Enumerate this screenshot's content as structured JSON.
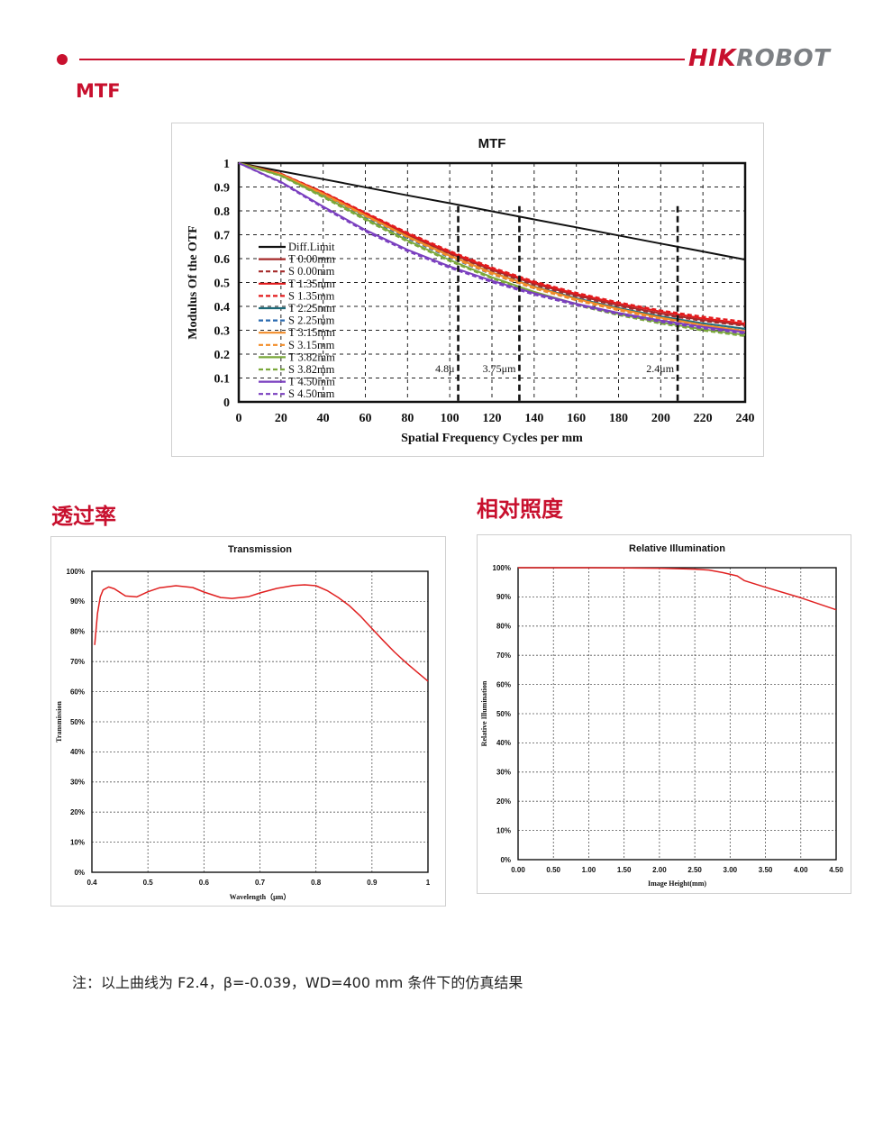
{
  "header": {
    "logo_part1": "HIK",
    "logo_part2": "ROBOT",
    "accent_color": "#c8102e"
  },
  "sections": {
    "mtf_title": "MTF",
    "transmission_title": "透过率",
    "illumination_title": "相对照度"
  },
  "note": "注：以上曲线为 F2.4，β=-0.039，WD=400 mm 条件下的仿真结果",
  "chart_data": [
    {
      "id": "mtf",
      "type": "line",
      "title": "MTF",
      "xlabel": "Spatial Frequency Cycles per mm",
      "ylabel": "Modulus Of the OTF",
      "xlim": [
        0,
        240
      ],
      "ylim": [
        0,
        1
      ],
      "xticks": [
        0,
        20,
        40,
        60,
        80,
        100,
        120,
        140,
        160,
        180,
        200,
        220,
        240
      ],
      "yticks": [
        0,
        0.1,
        0.2,
        0.3,
        0.4,
        0.5,
        0.6,
        0.7,
        0.8,
        0.9,
        1
      ],
      "x": [
        0,
        20,
        40,
        60,
        80,
        100,
        120,
        140,
        160,
        180,
        200,
        220,
        240
      ],
      "grid": true,
      "legend": "left",
      "series": [
        {
          "name": "Diff.Limit",
          "color": "#111111",
          "dash": false,
          "values": [
            1,
            0.966,
            0.933,
            0.899,
            0.865,
            0.832,
            0.798,
            0.764,
            0.731,
            0.697,
            0.663,
            0.63,
            0.596
          ]
        },
        {
          "name": "T 0.00mm",
          "color": "#a52a2a",
          "dash": false,
          "values": [
            1,
            0.953,
            0.873,
            0.785,
            0.7,
            0.622,
            0.553,
            0.495,
            0.446,
            0.405,
            0.37,
            0.343,
            0.322
          ]
        },
        {
          "name": "S 0.00mm",
          "color": "#a52a2a",
          "dash": true,
          "values": [
            1,
            0.951,
            0.869,
            0.78,
            0.695,
            0.617,
            0.548,
            0.49,
            0.442,
            0.401,
            0.366,
            0.339,
            0.318
          ]
        },
        {
          "name": "T 1.35mm",
          "color": "#e31a1c",
          "dash": false,
          "values": [
            1,
            0.955,
            0.877,
            0.79,
            0.705,
            0.627,
            0.558,
            0.5,
            0.452,
            0.412,
            0.378,
            0.35,
            0.328
          ]
        },
        {
          "name": "S 1.35mm",
          "color": "#e31a1c",
          "dash": true,
          "values": [
            1,
            0.956,
            0.879,
            0.793,
            0.709,
            0.632,
            0.563,
            0.505,
            0.457,
            0.417,
            0.383,
            0.357,
            0.336
          ]
        },
        {
          "name": "T 2.25mm",
          "color": "#1f6b7a",
          "dash": false,
          "values": [
            1,
            0.952,
            0.87,
            0.78,
            0.692,
            0.612,
            0.542,
            0.483,
            0.434,
            0.393,
            0.358,
            0.329,
            0.306
          ]
        },
        {
          "name": "S 2.25mm",
          "color": "#2a6ab0",
          "dash": true,
          "values": [
            1,
            0.95,
            0.865,
            0.774,
            0.685,
            0.604,
            0.534,
            0.475,
            0.426,
            0.385,
            0.35,
            0.321,
            0.298
          ]
        },
        {
          "name": "T 3.15mm",
          "color": "#f28c28",
          "dash": false,
          "values": [
            1,
            0.953,
            0.872,
            0.782,
            0.693,
            0.612,
            0.541,
            0.481,
            0.431,
            0.389,
            0.353,
            0.322,
            0.297
          ]
        },
        {
          "name": "S 3.15mm",
          "color": "#f28c28",
          "dash": true,
          "values": [
            1,
            0.952,
            0.869,
            0.778,
            0.689,
            0.607,
            0.535,
            0.475,
            0.425,
            0.383,
            0.347,
            0.316,
            0.291
          ]
        },
        {
          "name": "T 3.82mm",
          "color": "#7aa83a",
          "dash": false,
          "values": [
            1,
            0.948,
            0.861,
            0.767,
            0.676,
            0.594,
            0.522,
            0.461,
            0.41,
            0.368,
            0.333,
            0.304,
            0.28
          ]
        },
        {
          "name": "S 3.82mm",
          "color": "#7aa83a",
          "dash": true,
          "values": [
            1,
            0.946,
            0.857,
            0.762,
            0.671,
            0.589,
            0.517,
            0.456,
            0.405,
            0.363,
            0.328,
            0.299,
            0.275
          ]
        },
        {
          "name": "T 4.50mm",
          "color": "#7a3fbf",
          "dash": false,
          "values": [
            1,
            0.921,
            0.818,
            0.72,
            0.637,
            0.567,
            0.507,
            0.455,
            0.411,
            0.373,
            0.341,
            0.314,
            0.292
          ]
        },
        {
          "name": "S 4.50mm",
          "color": "#7a3fbf",
          "dash": true,
          "values": [
            1,
            0.918,
            0.813,
            0.714,
            0.631,
            0.561,
            0.501,
            0.449,
            0.405,
            0.367,
            0.335,
            0.308,
            0.286
          ]
        }
      ],
      "markers": [
        {
          "x": 104,
          "label": "4.8μ"
        },
        {
          "x": 133,
          "label": "3.75μm"
        },
        {
          "x": 208,
          "label": "2.4μm"
        }
      ]
    },
    {
      "id": "transmission",
      "type": "line",
      "title": "Transmission",
      "xlabel": "Wavelength（μm）",
      "ylabel": "Transmission",
      "xlim": [
        0.4,
        1.0
      ],
      "ylim": [
        0,
        100
      ],
      "xticks": [
        0.4,
        0.5,
        0.6,
        0.7,
        0.8,
        0.9,
        1
      ],
      "xtick_labels": [
        "0.4",
        "0.5",
        "0.6",
        "0.7",
        "0.8",
        "0.9",
        "1"
      ],
      "yticks": [
        0,
        10,
        20,
        30,
        40,
        50,
        60,
        70,
        80,
        90,
        100
      ],
      "ytick_labels": [
        "0%",
        "10%",
        "20%",
        "30%",
        "40%",
        "50%",
        "60%",
        "70%",
        "80%",
        "90%",
        "100%"
      ],
      "grid": true,
      "series": [
        {
          "color": "#e02020",
          "x": [
            0.405,
            0.41,
            0.415,
            0.42,
            0.43,
            0.44,
            0.46,
            0.48,
            0.5,
            0.52,
            0.55,
            0.58,
            0.6,
            0.63,
            0.65,
            0.68,
            0.7,
            0.73,
            0.76,
            0.78,
            0.8,
            0.82,
            0.84,
            0.86,
            0.88,
            0.9,
            0.92,
            0.94,
            0.96,
            0.98,
            1.0
          ],
          "values": [
            75.5,
            86,
            91.5,
            93.8,
            94.8,
            94.2,
            91.8,
            91.5,
            93.2,
            94.5,
            95.2,
            94.6,
            93.1,
            91.3,
            91.0,
            91.6,
            92.8,
            94.3,
            95.3,
            95.5,
            95.2,
            93.6,
            91.3,
            88.5,
            85.0,
            81.0,
            77.0,
            73.2,
            69.8,
            66.6,
            63.5
          ]
        }
      ]
    },
    {
      "id": "relative_illumination",
      "type": "line",
      "title": "Relative Illumination",
      "xlabel": "Image Height(mm)",
      "ylabel": "Relative Illumination",
      "xlim": [
        0,
        4.5
      ],
      "ylim": [
        0,
        100
      ],
      "xticks": [
        0,
        0.5,
        1,
        1.5,
        2,
        2.5,
        3,
        3.5,
        4,
        4.5
      ],
      "xtick_labels": [
        "0.00",
        "0.50",
        "1.00",
        "1.50",
        "2.00",
        "2.50",
        "3.00",
        "3.50",
        "4.00",
        "4.50"
      ],
      "yticks": [
        0,
        10,
        20,
        30,
        40,
        50,
        60,
        70,
        80,
        90,
        100
      ],
      "ytick_labels": [
        "0%",
        "10%",
        "20%",
        "30%",
        "40%",
        "50%",
        "60%",
        "70%",
        "80%",
        "90%",
        "100%"
      ],
      "grid": true,
      "series": [
        {
          "color": "#e02020",
          "x": [
            0,
            0.5,
            1.0,
            1.5,
            2.0,
            2.5,
            2.7,
            2.9,
            3.1,
            3.2,
            3.5,
            4.0,
            4.5
          ],
          "values": [
            100,
            100,
            100,
            99.9,
            99.8,
            99.5,
            99.2,
            98.3,
            97.2,
            95.6,
            93.3,
            89.7,
            85.6
          ]
        }
      ]
    }
  ]
}
